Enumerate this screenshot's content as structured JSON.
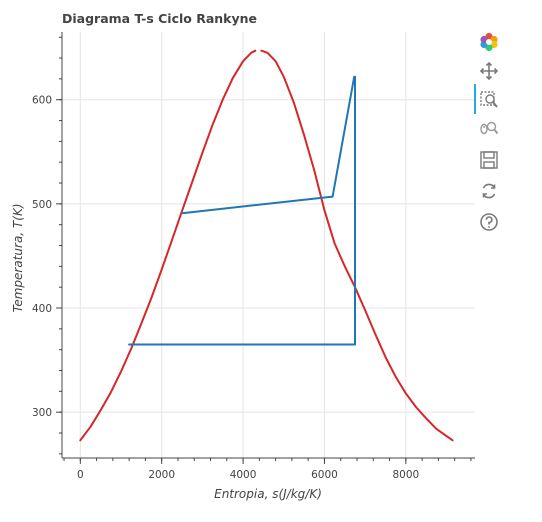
{
  "chart_data": {
    "type": "line",
    "title": "Diagrama T-s Ciclo Rankyne",
    "xlabel": "Entropia, s(J/kg/K)",
    "ylabel": "Temperatura, T(K)",
    "xlim": [
      -450,
      9700
    ],
    "ylim": [
      256,
      665
    ],
    "xticks": [
      0,
      2000,
      4000,
      6000,
      8000
    ],
    "yticks": [
      300,
      400,
      500,
      600
    ],
    "grid": true,
    "series": [
      {
        "color": "#d62728",
        "x": [
          0,
          250,
          500,
          750,
          1000,
          1250,
          1500,
          1750,
          2000,
          2250,
          2500,
          2750,
          3000,
          3250,
          3500,
          3750,
          4000,
          4200,
          4300
        ],
        "y": [
          273,
          286,
          302,
          319,
          339,
          361,
          385,
          410,
          437,
          465,
          493,
          521,
          549,
          576,
          600,
          621,
          637,
          645,
          647
        ]
      },
      {
        "color": "#d62728",
        "x": [
          4450,
          4600,
          4800,
          5000,
          5250,
          5500,
          5750,
          6000,
          6250,
          6500,
          6750,
          7000,
          7250,
          7500,
          7750,
          8000,
          8250,
          8500,
          8750,
          9000,
          9150
        ],
        "y": [
          647,
          645,
          637,
          622,
          597,
          566,
          532,
          494,
          462,
          440,
          420,
          398,
          375,
          353,
          334,
          318,
          305,
          294,
          284,
          277,
          273
        ]
      },
      {
        "color": "#1f77b4",
        "x": [
          1200,
          6750,
          6750,
          6730,
          6200,
          2500
        ],
        "y": [
          365,
          365,
          622,
          622,
          507,
          491
        ]
      }
    ]
  },
  "toolbar": {
    "tools": [
      "bokeh-logo-icon",
      "pan-icon",
      "box-zoom-icon",
      "wheel-zoom-icon",
      "save-icon",
      "reset-icon",
      "help-icon"
    ]
  }
}
